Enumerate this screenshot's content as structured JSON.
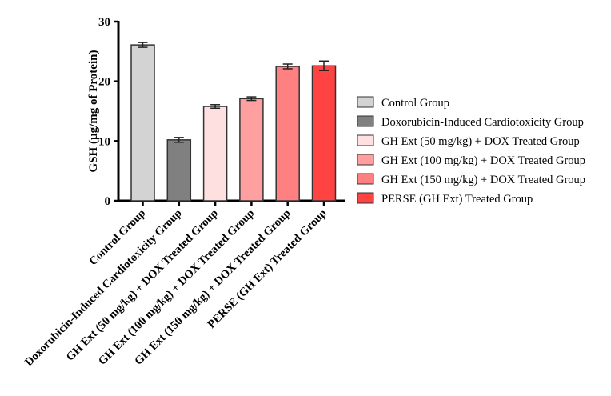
{
  "chart_data": {
    "type": "bar",
    "title": "",
    "xlabel": "",
    "ylabel": "GSH (µg/mg of Protein)",
    "ylim": [
      0,
      30
    ],
    "yticks": [
      "0",
      "10",
      "20",
      "30"
    ],
    "categories": [
      "Control Group",
      "Doxorubicin-Induced Cardiotoxicity Group",
      "GH Ext (50 mg/kg) + DOX Treated Group",
      "GH Ext (100 mg/kg) + DOX Treated Group",
      "GH Ext (150 mg/kg) + DOX Treated Group",
      "PERSE (GH Ext) Treated Group"
    ],
    "values": [
      26.1,
      10.2,
      15.8,
      17.1,
      22.5,
      22.6
    ],
    "errors": [
      0.4,
      0.4,
      0.3,
      0.3,
      0.4,
      0.8
    ],
    "colors": [
      "#d3d3d3",
      "#808080",
      "#ffe0e0",
      "#ffa0a0",
      "#ff8080",
      "#ff4242"
    ],
    "legend": {
      "position": "right",
      "entries": [
        "Control Group",
        "Doxorubicin-Induced Cardiotoxicity Group",
        "GH Ext (50 mg/kg) + DOX Treated Group",
        "GH Ext (100 mg/kg) + DOX Treated Group",
        "GH Ext (150 mg/kg) + DOX Treated Group",
        "PERSE (GH Ext) Treated Group"
      ]
    },
    "grid": false
  }
}
